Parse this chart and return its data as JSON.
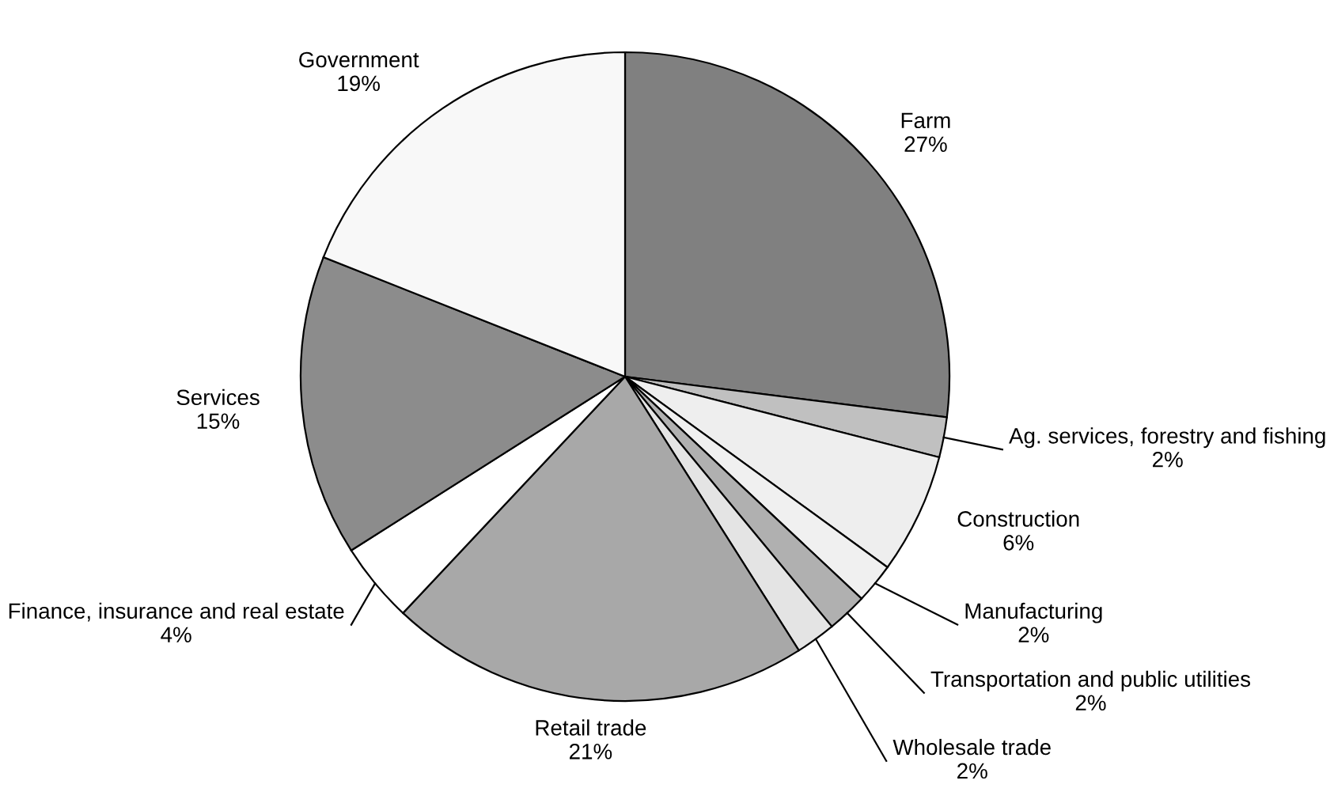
{
  "chart_data": {
    "type": "pie",
    "categories": [
      "Farm",
      "Ag. services, forestry and fishing",
      "Construction",
      "Manufacturing",
      "Transportation and public utilities",
      "Wholesale trade",
      "Retail trade",
      "Finance, insurance and real estate",
      "Services",
      "Government"
    ],
    "values": [
      27,
      2,
      6,
      2,
      2,
      2,
      21,
      4,
      15,
      19
    ],
    "value_labels": [
      "27%",
      "2%",
      "6%",
      "2%",
      "2%",
      "2%",
      "21%",
      "4%",
      "15%",
      "19%"
    ],
    "colors": [
      "#808080",
      "#c0c0c0",
      "#eeeeee",
      "#f0f0f0",
      "#b0b0b0",
      "#e4e4e4",
      "#a8a8a8",
      "#ffffff",
      "#8c8c8c",
      "#f8f8f8"
    ]
  }
}
